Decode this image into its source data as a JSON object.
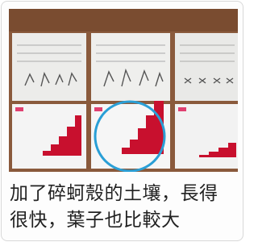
{
  "caption": [
    "加了碎蚵殼的土壤，長得",
    "很快，葉子也比較大"
  ]
}
